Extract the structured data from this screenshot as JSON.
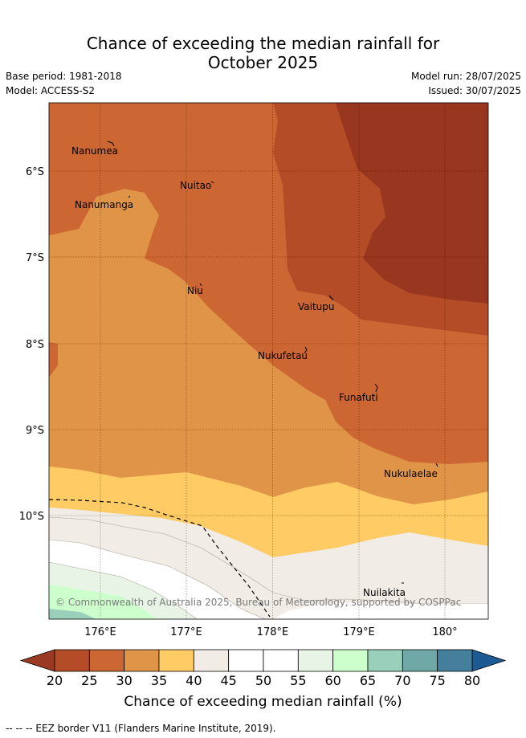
{
  "header": {
    "title_line1": "Chance of exceeding the median rainfall for",
    "title_line2": "October 2025",
    "base_period": "Base period: 1981-2018",
    "model": "Model: ACCESS-S2",
    "model_run": "Model run: 28/07/2025",
    "issued": "Issued: 30/07/2025"
  },
  "map": {
    "lat_labels": [
      "6°S",
      "7°S",
      "8°S",
      "9°S",
      "10°S"
    ],
    "lon_labels": [
      "176°E",
      "177°E",
      "178°E",
      "179°E",
      "180°"
    ],
    "places": [
      {
        "name": "Nanumea"
      },
      {
        "name": "Nuitao"
      },
      {
        "name": "Nanumanga"
      },
      {
        "name": "Niu"
      },
      {
        "name": "Vaitupu"
      },
      {
        "name": "Nukufetau"
      },
      {
        "name": "Funafuti"
      },
      {
        "name": "Nukulaelae"
      },
      {
        "name": "Nuilakita"
      }
    ],
    "copyright": "© Commonwealth of Australia 2025, Bureau of Meteorology, supported by COSPPac"
  },
  "colorbar": {
    "ticks": [
      "20",
      "25",
      "30",
      "35",
      "40",
      "45",
      "50",
      "55",
      "60",
      "65",
      "70",
      "75",
      "80"
    ],
    "colors": [
      "#b34c27",
      "#cc6633",
      "#e09448",
      "#fecb65",
      "#f1ede6",
      "#ffffff",
      "#ffffff",
      "#e8f5e6",
      "#ccffcc",
      "#9ad0bb",
      "#6fa8a6",
      "#44809c"
    ],
    "low_color": "#9a3a22",
    "high_color": "#1c5a94",
    "label": "Chance of exceeding median rainfall (%)"
  },
  "footnote": "--  --  -- EEZ border V11 (Flanders Marine Institute, 2019)."
}
